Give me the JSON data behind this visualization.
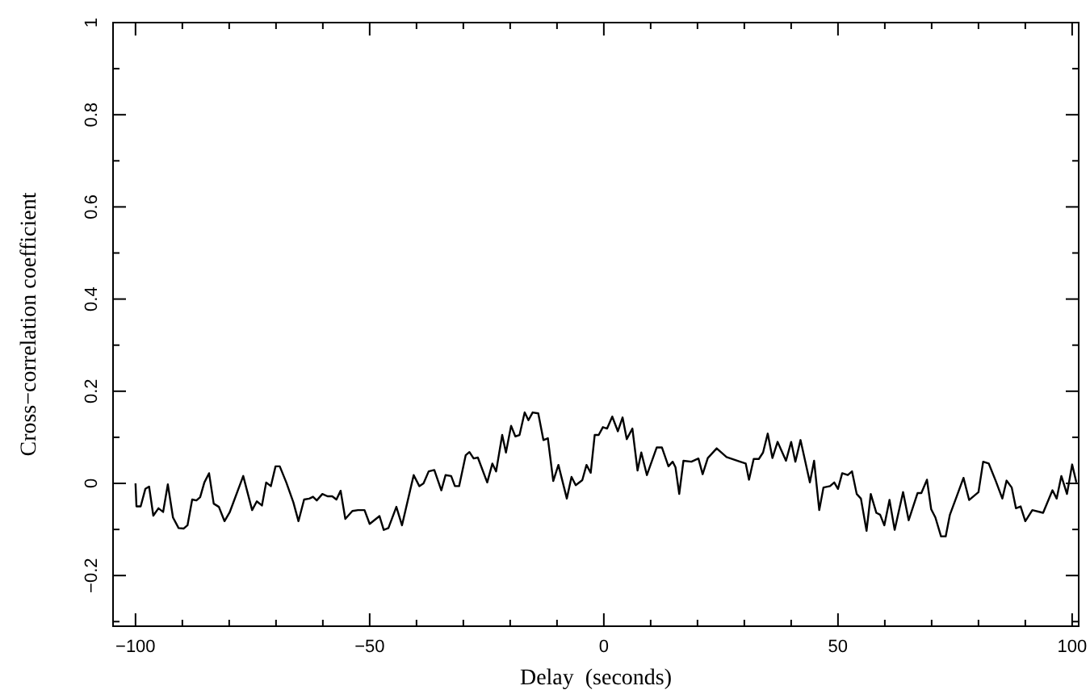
{
  "chart_data": {
    "type": "line",
    "xlabel": "Delay  (seconds)",
    "ylabel": "Cross−correlation coefficient",
    "xlim": [
      -104.8,
      101.4
    ],
    "ylim": [
      -0.31,
      1
    ],
    "xticks": [
      -100,
      {
        "value": -90,
        "label": null
      },
      {
        "value": -80,
        "label": null
      },
      {
        "value": -70,
        "label": null
      },
      {
        "value": -60,
        "label": null
      },
      -50,
      {
        "value": -40,
        "label": null
      },
      {
        "value": -30,
        "label": null
      },
      {
        "value": -20,
        "label": null
      },
      {
        "value": -10,
        "label": null
      },
      0,
      {
        "value": 10,
        "label": null
      },
      {
        "value": 20,
        "label": null
      },
      {
        "value": 30,
        "label": null
      },
      {
        "value": 40,
        "label": null
      },
      50,
      {
        "value": 60,
        "label": null
      },
      {
        "value": 70,
        "label": null
      },
      {
        "value": 80,
        "label": null
      },
      {
        "value": 90,
        "label": null
      },
      100
    ],
    "yticks": [
      {
        "value": -0.3,
        "label": null
      },
      -0.2,
      {
        "value": -0.1,
        "label": null
      },
      0,
      {
        "value": 0.1,
        "label": null
      },
      0.2,
      {
        "value": 0.3,
        "label": null
      },
      0.4,
      {
        "value": 0.5,
        "label": null
      },
      0.6,
      {
        "value": 0.7,
        "label": null
      },
      0.8,
      {
        "value": 0.9,
        "label": null
      },
      1
    ],
    "grid": false,
    "marker": "none",
    "line_style": "solid",
    "series": [
      {
        "color": "#000000",
        "x": [
          -100,
          -99.8,
          -98.9,
          -97.9,
          -97.1,
          -96.2,
          -95.1,
          -94.1,
          -93.1,
          -92,
          -90.8,
          -89.7,
          -88.9,
          -87.9,
          -87,
          -86.2,
          -85.3,
          -84.3,
          -83.3,
          -82.2,
          -81,
          -79.9,
          -77,
          -75.1,
          -74.1,
          -73,
          -72.1,
          -71.1,
          -70.1,
          -69.2,
          -67.8,
          -66.3,
          -65.2,
          -64,
          -62.9,
          -62.1,
          -61.3,
          -60.1,
          -59,
          -58,
          -57.1,
          -56.2,
          -55.2,
          -53.7,
          -52.5,
          -51.1,
          -50,
          -47.9,
          -47,
          -46,
          -44.3,
          -43.1,
          -40.6,
          -39.4,
          -38.5,
          -37.4,
          -36.2,
          -34.7,
          -33.8,
          -32.6,
          -31.8,
          -30.9,
          -29.5,
          -28.7,
          -27.8,
          -26.9,
          -24.9,
          -23.8,
          -23,
          -21.7,
          -20.9,
          -19.8,
          -18.9,
          -18,
          -16.9,
          -16.1,
          -15.2,
          -14,
          -12.9,
          -11.95,
          -10.8,
          -9.7,
          -7.9,
          -6.9,
          -6,
          -4.6,
          -3.7,
          -2.8,
          -1.95,
          -1.1,
          -0.2,
          0.7,
          1.8,
          3,
          4,
          4.9,
          6.1,
          7.2,
          8,
          9.2,
          11.3,
          12.4,
          13.8,
          14.7,
          15.3,
          16.1,
          17,
          18.7,
          20.2,
          21.1,
          22.2,
          24.1,
          26.2,
          29.1,
          30.3,
          31,
          32,
          33.1,
          34,
          35,
          36,
          37.1,
          38.9,
          40,
          40.9,
          42,
          44,
          44.9,
          46,
          46.9,
          48.3,
          49.2,
          50,
          50.9,
          52.1,
          53,
          54,
          54.9,
          56.1,
          57,
          58.2,
          59,
          59.9,
          61,
          62.1,
          63.9,
          65.1,
          67,
          67.8,
          69,
          69.9,
          70.8,
          72,
          73,
          73.9,
          75.4,
          76.8,
          78,
          80,
          81,
          82.2,
          83.7,
          85.1,
          86,
          87.1,
          88,
          89,
          90,
          91.5,
          93.8,
          95.8,
          96.7,
          97.7,
          98.9,
          100,
          100.9
        ],
        "values": [
          0,
          -0.05,
          -0.05,
          -0.012,
          -0.007,
          -0.07,
          -0.054,
          -0.062,
          -0.002,
          -0.074,
          -0.097,
          -0.098,
          -0.091,
          -0.035,
          -0.037,
          -0.03,
          0.002,
          0.022,
          -0.044,
          -0.051,
          -0.082,
          -0.063,
          0.016,
          -0.058,
          -0.039,
          -0.048,
          0.002,
          -0.006,
          0.037,
          0.037,
          0.002,
          -0.041,
          -0.082,
          -0.035,
          -0.033,
          -0.029,
          -0.037,
          -0.023,
          -0.028,
          -0.028,
          -0.035,
          -0.016,
          -0.077,
          -0.06,
          -0.058,
          -0.058,
          -0.088,
          -0.071,
          -0.101,
          -0.097,
          -0.051,
          -0.091,
          0.018,
          -0.006,
          0,
          0.026,
          0.029,
          -0.015,
          0.018,
          0.016,
          -0.006,
          -0.006,
          0.061,
          0.068,
          0.054,
          0.056,
          0.002,
          0.043,
          0.026,
          0.105,
          0.067,
          0.125,
          0.102,
          0.105,
          0.154,
          0.137,
          0.154,
          0.152,
          0.094,
          0.098,
          0.005,
          0.04,
          -0.033,
          0.014,
          -0.004,
          0.007,
          0.04,
          0.023,
          0.105,
          0.105,
          0.122,
          0.119,
          0.145,
          0.113,
          0.143,
          0.096,
          0.119,
          0.028,
          0.067,
          0.018,
          0.078,
          0.078,
          0.037,
          0.047,
          0.035,
          -0.023,
          0.049,
          0.047,
          0.054,
          0.02,
          0.055,
          0.076,
          0.057,
          0.047,
          0.043,
          0.008,
          0.053,
          0.053,
          0.067,
          0.108,
          0.055,
          0.09,
          0.049,
          0.09,
          0.047,
          0.094,
          0.002,
          0.049,
          -0.058,
          -0.009,
          -0.006,
          0.002,
          -0.012,
          0.022,
          0.018,
          0.026,
          -0.023,
          -0.033,
          -0.103,
          -0.023,
          -0.064,
          -0.068,
          -0.091,
          -0.036,
          -0.101,
          -0.019,
          -0.08,
          -0.021,
          -0.021,
          0.008,
          -0.056,
          -0.074,
          -0.115,
          -0.115,
          -0.068,
          -0.027,
          0.012,
          -0.036,
          -0.019,
          0.047,
          0.043,
          0.005,
          -0.033,
          0.006,
          -0.009,
          -0.054,
          -0.05,
          -0.082,
          -0.058,
          -0.064,
          -0.015,
          -0.033,
          0.016,
          -0.023,
          0.041,
          0.002
        ]
      }
    ]
  }
}
